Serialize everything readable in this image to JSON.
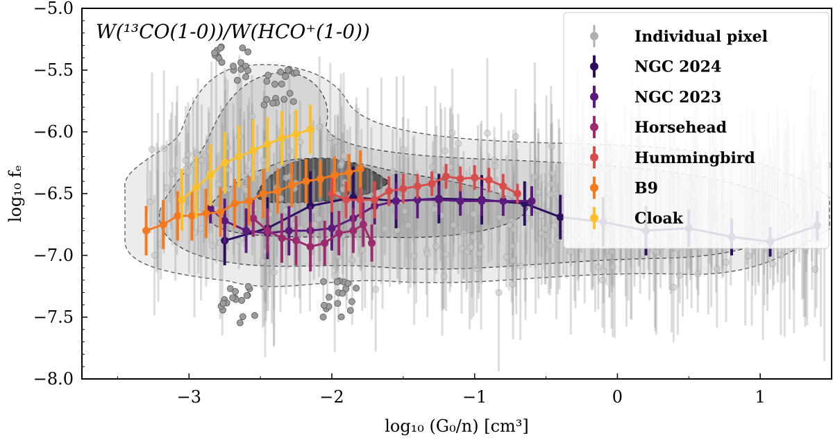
{
  "chart_data": {
    "type": "scatter",
    "title": "W(¹³CO(1-0))/W(HCO⁺(1-0))",
    "xlabel": "log₁₀ (G₀/n) [cm³]",
    "ylabel": "log₁₀ fₑ",
    "xlim": [
      -3.75,
      1.5
    ],
    "ylim": [
      -8.0,
      -5.0
    ],
    "xticks": [
      -3,
      -2,
      -1,
      0,
      1
    ],
    "xtick_labels": [
      "−3",
      "−2",
      "−1",
      "0",
      "1"
    ],
    "yticks": [
      -8.0,
      -7.5,
      -7.0,
      -6.5,
      -6.0,
      -5.5,
      -5.0
    ],
    "ytick_labels": [
      "−8.0",
      "−7.5",
      "−7.0",
      "−6.5",
      "−6.0",
      "−5.5",
      "−5.0"
    ],
    "legend_position": "top-right",
    "legend": [
      {
        "label": "Individual pixel",
        "color": "#b0b0b0"
      },
      {
        "label": "NGC 2024",
        "color": "#2c105f"
      },
      {
        "label": "NGC 2023",
        "color": "#5c1a7e"
      },
      {
        "label": "Horsehead",
        "color": "#9c2a6e"
      },
      {
        "label": "Hummingbird",
        "color": "#d94c4c"
      },
      {
        "label": "B9",
        "color": "#f47a1d"
      },
      {
        "label": "Cloak",
        "color": "#fbc12d"
      }
    ],
    "series": [
      {
        "name": "NGC 2024",
        "color": "#2c105f",
        "x": [
          -2.75,
          -2.45,
          -2.15,
          -1.85,
          -1.55,
          -1.25,
          -0.95,
          -0.65,
          -0.4,
          -0.1,
          0.2,
          0.5,
          0.8,
          1.07,
          1.4
        ],
        "y": [
          -6.88,
          -6.78,
          -6.6,
          -6.53,
          -6.56,
          -6.54,
          -6.55,
          -6.58,
          -6.69,
          -6.73,
          -6.8,
          -6.78,
          -6.85,
          -6.89,
          -6.76
        ],
        "err": [
          0.2,
          0.25,
          0.28,
          0.25,
          0.22,
          0.2,
          0.2,
          0.18,
          0.18,
          0.2,
          0.2,
          0.15,
          0.15,
          0.12,
          0.12
        ]
      },
      {
        "name": "NGC 2023",
        "color": "#5c1a7e",
        "x": [
          -2.85,
          -2.75,
          -2.6,
          -2.45,
          -2.3,
          -2.15,
          -2.0,
          -1.85,
          -1.7,
          -1.55,
          -1.4,
          -1.25,
          -1.1,
          -0.95,
          -0.8,
          -0.6
        ],
        "y": [
          -6.62,
          -6.72,
          -6.8,
          -6.82,
          -6.8,
          -6.8,
          -6.78,
          -6.7,
          -6.6,
          -6.56,
          -6.55,
          -6.55,
          -6.56,
          -6.56,
          -6.56,
          -6.56
        ],
        "err": [
          0.12,
          0.18,
          0.18,
          0.2,
          0.2,
          0.2,
          0.18,
          0.15,
          0.15,
          0.15,
          0.15,
          0.12,
          0.12,
          0.12,
          0.12,
          0.12
        ]
      },
      {
        "name": "Horsehead",
        "color": "#9c2a6e",
        "x": [
          -2.55,
          -2.45,
          -2.35,
          -2.25,
          -2.15,
          -2.05,
          -1.95,
          -1.85,
          -1.78,
          -1.72
        ],
        "y": [
          -6.7,
          -6.8,
          -6.86,
          -6.88,
          -6.93,
          -6.9,
          -6.82,
          -6.8,
          -6.75,
          -6.9
        ],
        "err": [
          0.15,
          0.18,
          0.2,
          0.2,
          0.2,
          0.18,
          0.18,
          0.18,
          0.18,
          0.15
        ]
      },
      {
        "name": "Hummingbird",
        "color": "#d94c4c",
        "x": [
          -2.0,
          -1.9,
          -1.8,
          -1.7,
          -1.6,
          -1.5,
          -1.4,
          -1.3,
          -1.2,
          -1.1,
          -1.0,
          -0.9,
          -0.8,
          -0.7
        ],
        "y": [
          -6.5,
          -6.55,
          -6.55,
          -6.55,
          -6.48,
          -6.46,
          -6.44,
          -6.42,
          -6.36,
          -6.38,
          -6.37,
          -6.39,
          -6.44,
          -6.5
        ],
        "err": [
          0.15,
          0.15,
          0.15,
          0.15,
          0.12,
          0.12,
          0.1,
          0.1,
          0.1,
          0.1,
          0.1,
          0.1,
          0.1,
          0.08
        ]
      },
      {
        "name": "B9",
        "color": "#f47a1d",
        "x": [
          -3.3,
          -3.18,
          -3.08,
          -2.98,
          -2.88,
          -2.78,
          -2.68,
          -2.58,
          -2.48,
          -2.38,
          -2.28,
          -2.18,
          -2.08,
          -1.98,
          -1.88,
          -1.8
        ],
        "y": [
          -6.8,
          -6.75,
          -6.68,
          -6.68,
          -6.66,
          -6.65,
          -6.58,
          -6.56,
          -6.5,
          -6.48,
          -6.43,
          -6.4,
          -6.38,
          -6.35,
          -6.33,
          -6.3
        ],
        "err": [
          0.2,
          0.2,
          0.2,
          0.2,
          0.2,
          0.2,
          0.2,
          0.2,
          0.2,
          0.18,
          0.18,
          0.18,
          0.15,
          0.15,
          0.15,
          0.15
        ]
      },
      {
        "name": "Cloak",
        "color": "#fbc12d",
        "x": [
          -3.05,
          -2.95,
          -2.85,
          -2.75,
          -2.65,
          -2.55,
          -2.45,
          -2.35,
          -2.25,
          -2.15
        ],
        "y": [
          -6.55,
          -6.45,
          -6.35,
          -6.25,
          -6.2,
          -6.15,
          -6.1,
          -6.05,
          -6.02,
          -5.98
        ],
        "err": [
          0.25,
          0.25,
          0.25,
          0.25,
          0.25,
          0.25,
          0.22,
          0.22,
          0.2,
          0.2
        ]
      }
    ]
  }
}
